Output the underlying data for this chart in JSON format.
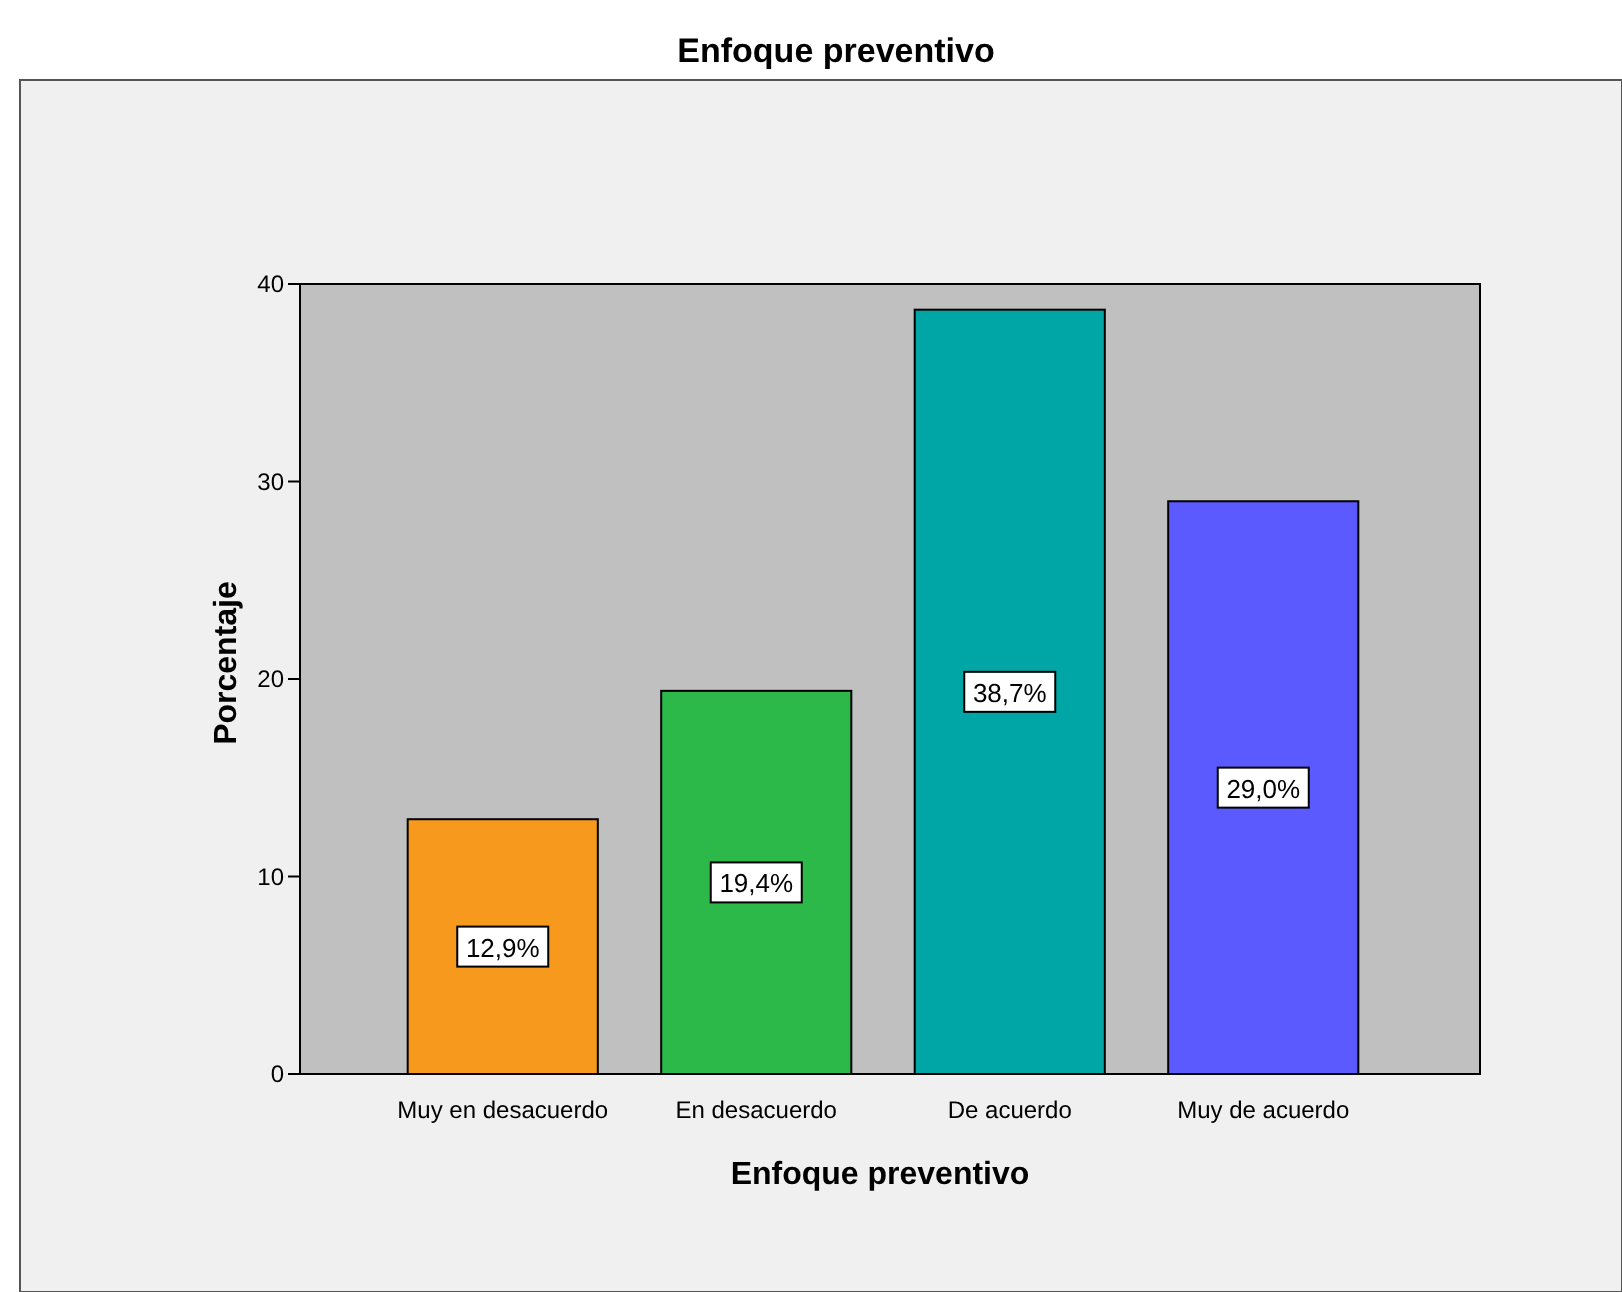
{
  "chart_data": {
    "type": "bar",
    "title": "Enfoque preventivo",
    "xlabel": "Enfoque preventivo",
    "ylabel": "Porcentaje",
    "categories": [
      "Muy en desacuerdo",
      "En desacuerdo",
      "De acuerdo",
      "Muy de acuerdo"
    ],
    "values": [
      12.9,
      19.4,
      38.7,
      29.0
    ],
    "colors": [
      "#f7991c",
      "#2db84a",
      "#00a6a6",
      "#5a5aff"
    ],
    "value_labels": [
      "12,9%",
      "19,4%",
      "38,7%",
      "29,0%"
    ],
    "ylim": [
      0,
      40
    ],
    "yticks": [
      0,
      10,
      20,
      30,
      40
    ],
    "grid": false
  }
}
